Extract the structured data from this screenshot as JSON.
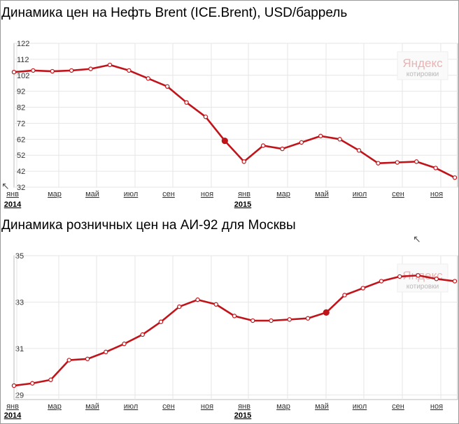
{
  "watermark": {
    "brand": "Яндекс",
    "subtitle": "котировки"
  },
  "chart_data": [
    {
      "type": "line",
      "title": "Динамика цен на Нефть Brent (ICE.Brent), USD/баррель",
      "xlabel": "",
      "ylabel": "",
      "ylim": [
        32,
        122
      ],
      "yticks": [
        122,
        112,
        102,
        92,
        82,
        72,
        62,
        52,
        42,
        32
      ],
      "xticks": [
        "янв",
        "мар",
        "май",
        "июл",
        "сен",
        "ноя",
        "янв",
        "мар",
        "май",
        "июл",
        "сен",
        "ноя"
      ],
      "year_labels": [
        "2014",
        "2015"
      ],
      "grid": true,
      "series": [
        {
          "values": [
            104,
            105,
            104.5,
            105,
            106,
            108.5,
            105,
            100,
            95,
            85,
            76,
            61,
            48,
            58,
            56,
            60,
            64,
            62,
            55,
            47,
            47.5,
            48,
            44,
            38
          ],
          "highlight_index": 11
        }
      ]
    },
    {
      "type": "line",
      "title": "Динамика розничных цен на АИ-92 для Москвы",
      "xlabel": "",
      "ylabel": "",
      "ylim": [
        28.8,
        35
      ],
      "yticks": [
        35,
        33,
        31,
        29
      ],
      "xticks": [
        "янв",
        "мар",
        "май",
        "июл",
        "сен",
        "ноя",
        "янв",
        "мар",
        "май",
        "июл",
        "сен",
        "ноя"
      ],
      "year_labels": [
        "2014",
        "2015"
      ],
      "grid": true,
      "series": [
        {
          "values": [
            29.4,
            29.5,
            29.65,
            30.5,
            30.55,
            30.85,
            31.2,
            31.6,
            32.15,
            32.8,
            33.1,
            32.9,
            32.4,
            32.2,
            32.2,
            32.25,
            32.3,
            32.55,
            33.3,
            33.6,
            33.9,
            34.1,
            34.15,
            34.0,
            33.9
          ],
          "highlight_index": 17
        }
      ]
    }
  ]
}
